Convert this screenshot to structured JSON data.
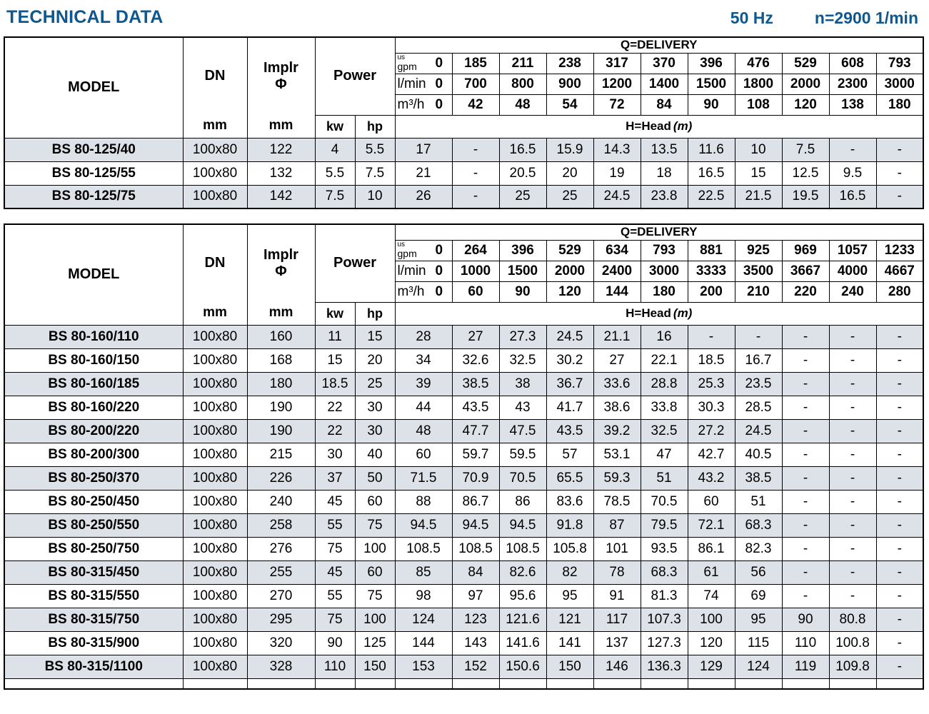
{
  "page_header": {
    "title": "TECHNICAL DATA",
    "frequency": "50 Hz",
    "speed": "n=2900 1/min"
  },
  "labels": {
    "model": "MODEL",
    "dn": "DN",
    "mm": "mm",
    "implr": "Implr",
    "phi": "Φ",
    "power": "Power",
    "kw": "kw",
    "hp": "hp",
    "q_delivery": "Q=DELIVERY",
    "h_head": "H=Head",
    "h_head_unit": "(m)",
    "unit_us": "us",
    "unit_gpm": "gpm",
    "unit_lmin": "l/min",
    "unit_m3h": "m³/h"
  },
  "tables": [
    {
      "q_usgpm": [
        "0",
        "185",
        "211",
        "238",
        "317",
        "370",
        "396",
        "476",
        "529",
        "608",
        "793"
      ],
      "q_lmin": [
        "0",
        "700",
        "800",
        "900",
        "1200",
        "1400",
        "1500",
        "1800",
        "2000",
        "2300",
        "3000"
      ],
      "q_m3h": [
        "0",
        "42",
        "48",
        "54",
        "72",
        "84",
        "90",
        "108",
        "120",
        "138",
        "180"
      ],
      "rows": [
        {
          "model": "BS 80-125/40",
          "dn": "100x80",
          "implr": "122",
          "kw": "4",
          "hp": "5.5",
          "heads": [
            "17",
            "-",
            "16.5",
            "15.9",
            "14.3",
            "13.5",
            "11.6",
            "10",
            "7.5",
            "-",
            "-"
          ]
        },
        {
          "model": "BS 80-125/55",
          "dn": "100x80",
          "implr": "132",
          "kw": "5.5",
          "hp": "7.5",
          "heads": [
            "21",
            "-",
            "20.5",
            "20",
            "19",
            "18",
            "16.5",
            "15",
            "12.5",
            "9.5",
            "-"
          ]
        },
        {
          "model": "BS 80-125/75",
          "dn": "100x80",
          "implr": "142",
          "kw": "7.5",
          "hp": "10",
          "heads": [
            "26",
            "-",
            "25",
            "25",
            "24.5",
            "23.8",
            "22.5",
            "21.5",
            "19.5",
            "16.5",
            "-"
          ]
        }
      ],
      "has_empty_footer": false
    },
    {
      "q_usgpm": [
        "0",
        "264",
        "396",
        "529",
        "634",
        "793",
        "881",
        "925",
        "969",
        "1057",
        "1233"
      ],
      "q_lmin": [
        "0",
        "1000",
        "1500",
        "2000",
        "2400",
        "3000",
        "3333",
        "3500",
        "3667",
        "4000",
        "4667"
      ],
      "q_m3h": [
        "0",
        "60",
        "90",
        "120",
        "144",
        "180",
        "200",
        "210",
        "220",
        "240",
        "280"
      ],
      "rows": [
        {
          "model": "BS 80-160/110",
          "dn": "100x80",
          "implr": "160",
          "kw": "11",
          "hp": "15",
          "heads": [
            "28",
            "27",
            "27.3",
            "24.5",
            "21.1",
            "16",
            "-",
            "-",
            "-",
            "-",
            "-"
          ]
        },
        {
          "model": "BS 80-160/150",
          "dn": "100x80",
          "implr": "168",
          "kw": "15",
          "hp": "20",
          "heads": [
            "34",
            "32.6",
            "32.5",
            "30.2",
            "27",
            "22.1",
            "18.5",
            "16.7",
            "-",
            "-",
            "-"
          ]
        },
        {
          "model": "BS 80-160/185",
          "dn": "100x80",
          "implr": "180",
          "kw": "18.5",
          "hp": "25",
          "heads": [
            "39",
            "38.5",
            "38",
            "36.7",
            "33.6",
            "28.8",
            "25.3",
            "23.5",
            "-",
            "-",
            "-"
          ]
        },
        {
          "model": "BS 80-160/220",
          "dn": "100x80",
          "implr": "190",
          "kw": "22",
          "hp": "30",
          "heads": [
            "44",
            "43.5",
            "43",
            "41.7",
            "38.6",
            "33.8",
            "30.3",
            "28.5",
            "-",
            "-",
            "-"
          ]
        },
        {
          "model": "BS 80-200/220",
          "dn": "100x80",
          "implr": "190",
          "kw": "22",
          "hp": "30",
          "heads": [
            "48",
            "47.7",
            "47.5",
            "43.5",
            "39.2",
            "32.5",
            "27.2",
            "24.5",
            "-",
            "-",
            "-"
          ]
        },
        {
          "model": "BS 80-200/300",
          "dn": "100x80",
          "implr": "215",
          "kw": "30",
          "hp": "40",
          "heads": [
            "60",
            "59.7",
            "59.5",
            "57",
            "53.1",
            "47",
            "42.7",
            "40.5",
            "-",
            "-",
            "-"
          ]
        },
        {
          "model": "BS 80-250/370",
          "dn": "100x80",
          "implr": "226",
          "kw": "37",
          "hp": "50",
          "heads": [
            "71.5",
            "70.9",
            "70.5",
            "65.5",
            "59.3",
            "51",
            "43.2",
            "38.5",
            "-",
            "-",
            "-"
          ]
        },
        {
          "model": "BS 80-250/450",
          "dn": "100x80",
          "implr": "240",
          "kw": "45",
          "hp": "60",
          "heads": [
            "88",
            "86.7",
            "86",
            "83.6",
            "78.5",
            "70.5",
            "60",
            "51",
            "-",
            "-",
            "-"
          ]
        },
        {
          "model": "BS 80-250/550",
          "dn": "100x80",
          "implr": "258",
          "kw": "55",
          "hp": "75",
          "heads": [
            "94.5",
            "94.5",
            "94.5",
            "91.8",
            "87",
            "79.5",
            "72.1",
            "68.3",
            "-",
            "-",
            "-"
          ]
        },
        {
          "model": "BS 80-250/750",
          "dn": "100x80",
          "implr": "276",
          "kw": "75",
          "hp": "100",
          "heads": [
            "108.5",
            "108.5",
            "108.5",
            "105.8",
            "101",
            "93.5",
            "86.1",
            "82.3",
            "-",
            "-",
            "-"
          ]
        },
        {
          "model": "BS 80-315/450",
          "dn": "100x80",
          "implr": "255",
          "kw": "45",
          "hp": "60",
          "heads": [
            "85",
            "84",
            "82.6",
            "82",
            "78",
            "68.3",
            "61",
            "56",
            "-",
            "-",
            "-"
          ]
        },
        {
          "model": "BS 80-315/550",
          "dn": "100x80",
          "implr": "270",
          "kw": "55",
          "hp": "75",
          "heads": [
            "98",
            "97",
            "95.6",
            "95",
            "91",
            "81.3",
            "74",
            "69",
            "-",
            "-",
            "-"
          ]
        },
        {
          "model": "BS 80-315/750",
          "dn": "100x80",
          "implr": "295",
          "kw": "75",
          "hp": "100",
          "heads": [
            "124",
            "123",
            "121.6",
            "121",
            "117",
            "107.3",
            "100",
            "95",
            "90",
            "80.8",
            "-"
          ]
        },
        {
          "model": "BS 80-315/900",
          "dn": "100x80",
          "implr": "320",
          "kw": "90",
          "hp": "125",
          "heads": [
            "144",
            "143",
            "141.6",
            "141",
            "137",
            "127.3",
            "120",
            "115",
            "110",
            "100.8",
            "-"
          ]
        },
        {
          "model": "BS 80-315/1100",
          "dn": "100x80",
          "implr": "328",
          "kw": "110",
          "hp": "150",
          "heads": [
            "153",
            "152",
            "150.6",
            "150",
            "146",
            "136.3",
            "129",
            "124",
            "119",
            "109.8",
            "-"
          ]
        }
      ],
      "has_empty_footer": true
    }
  ]
}
